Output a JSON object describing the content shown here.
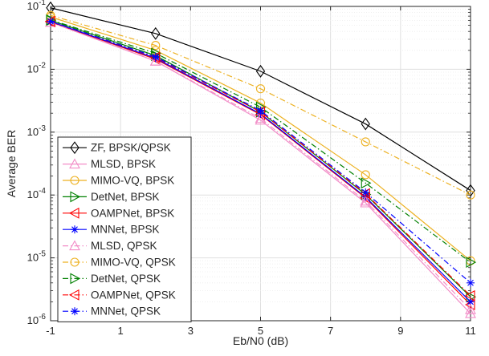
{
  "chart_data": {
    "type": "line",
    "title": "",
    "xlabel": "Eb/N0 (dB)",
    "ylabel": "Average BER",
    "xlim": [
      -1,
      11
    ],
    "ylim": [
      1e-06,
      0.1
    ],
    "yscale": "log",
    "grid": true,
    "legend_position": "bottom-left",
    "x_ticks": [
      -1,
      1,
      3,
      5,
      7,
      9,
      11
    ],
    "x_tick_labels": [
      "-1",
      "1",
      "3",
      "5",
      "7",
      "9",
      "11"
    ],
    "y_ticks": [
      1e-06,
      1e-05,
      0.0001,
      0.001,
      0.01,
      0.1
    ],
    "y_tick_base": "10",
    "y_tick_exponents": [
      "-6",
      "-5",
      "-4",
      "-3",
      "-2",
      "-1"
    ],
    "x": [
      -1,
      2,
      5,
      8,
      11
    ],
    "series": [
      {
        "name": "ZF, BPSK/QPSK",
        "color": "#000000",
        "marker": "diamond",
        "dash": "solid",
        "values": [
          0.095,
          0.037,
          0.0093,
          0.00135,
          0.000118
        ]
      },
      {
        "name": "MLSD, BPSK",
        "color": "#F28DC8",
        "marker": "triangle-up",
        "dash": "solid",
        "values": [
          0.056,
          0.0135,
          0.00155,
          7.5e-05,
          1.3e-06
        ]
      },
      {
        "name": "MIMO-VQ, BPSK",
        "color": "#EDB120",
        "marker": "circle",
        "dash": "solid",
        "values": [
          0.068,
          0.02,
          0.0029,
          0.00021,
          9e-06
        ]
      },
      {
        "name": "DetNet, BPSK",
        "color": "#008000",
        "marker": "triangle-right",
        "dash": "solid",
        "values": [
          0.06,
          0.0165,
          0.0021,
          0.000102,
          2.4e-06
        ]
      },
      {
        "name": "OAMPNet, BPSK",
        "color": "#FF0000",
        "marker": "triangle-left",
        "dash": "solid",
        "values": [
          0.057,
          0.0145,
          0.0019,
          9e-05,
          1.8e-06
        ]
      },
      {
        "name": "MNNet, BPSK",
        "color": "#0000FF",
        "marker": "asterisk",
        "dash": "solid",
        "values": [
          0.0575,
          0.015,
          0.00195,
          9.3e-05,
          2e-06
        ]
      },
      {
        "name": "MLSD, QPSK",
        "color": "#F28DC8",
        "marker": "triangle-up",
        "dash": "dashdot",
        "values": [
          0.056,
          0.0135,
          0.00165,
          8e-05,
          1.5e-06
        ]
      },
      {
        "name": "MIMO-VQ, QPSK",
        "color": "#EDB120",
        "marker": "circle",
        "dash": "dashdot",
        "values": [
          0.072,
          0.024,
          0.0049,
          0.0007,
          0.0001
        ]
      },
      {
        "name": "DetNet, QPSK",
        "color": "#008000",
        "marker": "triangle-right",
        "dash": "dashdot",
        "values": [
          0.061,
          0.018,
          0.0025,
          0.000155,
          8.5e-06
        ]
      },
      {
        "name": "OAMPNet, QPSK",
        "color": "#FF0000",
        "marker": "triangle-left",
        "dash": "dashdot",
        "values": [
          0.058,
          0.0155,
          0.0021,
          0.000105,
          2.5e-06
        ]
      },
      {
        "name": "MNNet, QPSK",
        "color": "#0000FF",
        "marker": "asterisk",
        "dash": "dashdot",
        "values": [
          0.058,
          0.0158,
          0.0022,
          0.00011,
          4e-06
        ]
      }
    ]
  }
}
